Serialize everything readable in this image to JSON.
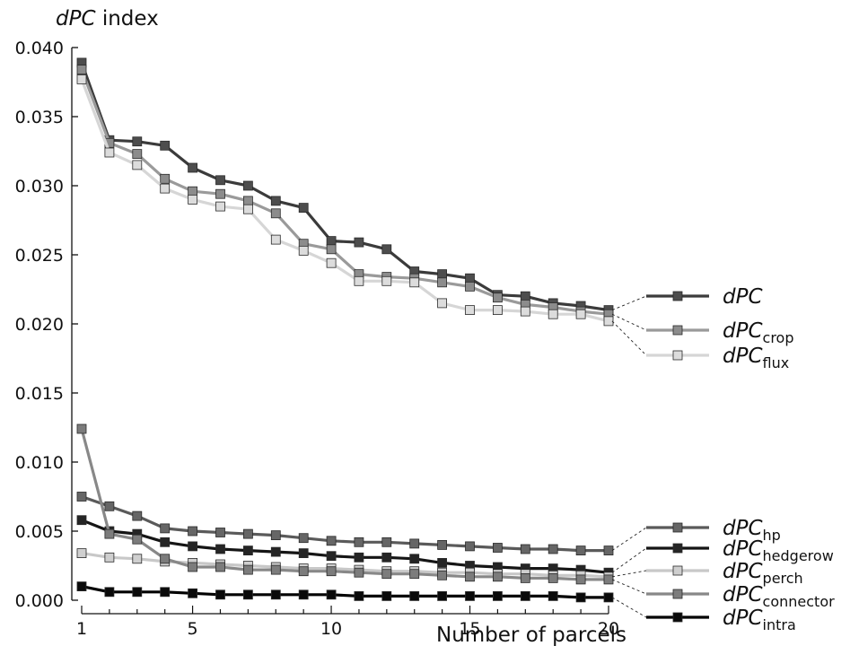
{
  "chart_data": {
    "type": "line",
    "title": "dPC index",
    "xlabel": "Number of parcels",
    "ylabel": "",
    "xlim": [
      1,
      20
    ],
    "ylim": [
      0,
      0.04
    ],
    "x_ticks": [
      "1",
      "5",
      "10",
      "15",
      "20"
    ],
    "y_ticks": [
      "0.000",
      "0.005",
      "0.010",
      "0.015",
      "0.020",
      "0.025",
      "0.030",
      "0.035",
      "0.040"
    ],
    "x": [
      1,
      2,
      3,
      4,
      5,
      6,
      7,
      8,
      9,
      10,
      11,
      12,
      13,
      14,
      15,
      16,
      17,
      18,
      19,
      20
    ],
    "series": [
      {
        "name": "dPC",
        "name_main": "dPC",
        "name_sub": "",
        "color": "#3b3b3b",
        "marker_fill": "#4d4d4d",
        "values": [
          0.0389,
          0.0333,
          0.0332,
          0.0329,
          0.0313,
          0.0304,
          0.03,
          0.0289,
          0.0284,
          0.026,
          0.0259,
          0.0254,
          0.0238,
          0.0236,
          0.0233,
          0.0221,
          0.022,
          0.0215,
          0.0213,
          0.021
        ]
      },
      {
        "name": "dPCcrop",
        "name_main": "dPC",
        "name_sub": "crop",
        "color": "#9a9a9a",
        "marker_fill": "#8c8c8c",
        "values": [
          0.0384,
          0.0331,
          0.0323,
          0.0305,
          0.0296,
          0.0294,
          0.0289,
          0.028,
          0.0258,
          0.0254,
          0.0236,
          0.0234,
          0.0233,
          0.023,
          0.0227,
          0.0219,
          0.0214,
          0.0212,
          0.0209,
          0.0207
        ]
      },
      {
        "name": "dPCflux",
        "name_main": "dPC",
        "name_sub": "flux",
        "color": "#d6d6d6",
        "marker_fill": "#dcdcdc",
        "values": [
          0.0377,
          0.0324,
          0.0315,
          0.0298,
          0.029,
          0.0285,
          0.0283,
          0.0261,
          0.0253,
          0.0244,
          0.0231,
          0.0231,
          0.023,
          0.0215,
          0.021,
          0.021,
          0.0209,
          0.0207,
          0.0207,
          0.0202
        ]
      },
      {
        "name": "dPChp",
        "name_main": "dPC",
        "name_sub": "hp",
        "color": "#5a5a5a",
        "marker_fill": "#666666",
        "values": [
          0.0075,
          0.0068,
          0.0061,
          0.0052,
          0.005,
          0.0049,
          0.0048,
          0.0047,
          0.0045,
          0.0043,
          0.0042,
          0.0042,
          0.0041,
          0.004,
          0.0039,
          0.0038,
          0.0037,
          0.0037,
          0.0036,
          0.0036
        ]
      },
      {
        "name": "dPChedgerow",
        "name_main": "dPC",
        "name_sub": "hedgerow",
        "color": "#151515",
        "marker_fill": "#252525",
        "values": [
          0.0058,
          0.005,
          0.0048,
          0.0042,
          0.0039,
          0.0037,
          0.0036,
          0.0035,
          0.0034,
          0.0032,
          0.0031,
          0.0031,
          0.003,
          0.0027,
          0.0025,
          0.0024,
          0.0023,
          0.0023,
          0.0022,
          0.002
        ]
      },
      {
        "name": "dPCperch",
        "name_main": "dPC",
        "name_sub": "perch",
        "color": "#c8c8c8",
        "marker_fill": "#cfcfcf",
        "values": [
          0.0034,
          0.0031,
          0.003,
          0.0028,
          0.0027,
          0.0026,
          0.0025,
          0.0024,
          0.0023,
          0.0023,
          0.0022,
          0.0021,
          0.0021,
          0.002,
          0.002,
          0.0019,
          0.0019,
          0.0018,
          0.0018,
          0.0017
        ]
      },
      {
        "name": "dPCconnector",
        "name_main": "dPC",
        "name_sub": "connector",
        "color": "#888888",
        "marker_fill": "#7c7c7c",
        "values": [
          0.0124,
          0.0048,
          0.0044,
          0.003,
          0.0024,
          0.0024,
          0.0022,
          0.0022,
          0.0021,
          0.0021,
          0.002,
          0.0019,
          0.0019,
          0.0018,
          0.0017,
          0.0017,
          0.0016,
          0.0016,
          0.0015,
          0.0015
        ]
      },
      {
        "name": "dPCintra",
        "name_main": "dPC",
        "name_sub": "intra",
        "color": "#000000",
        "marker_fill": "#0a0a0a",
        "values": [
          0.001,
          0.0006,
          0.0006,
          0.0006,
          0.0005,
          0.0004,
          0.0004,
          0.0004,
          0.0004,
          0.0004,
          0.0003,
          0.0003,
          0.0003,
          0.0003,
          0.0003,
          0.0003,
          0.0003,
          0.0003,
          0.0002,
          0.0002
        ]
      }
    ],
    "grid": false,
    "legend": "right"
  }
}
